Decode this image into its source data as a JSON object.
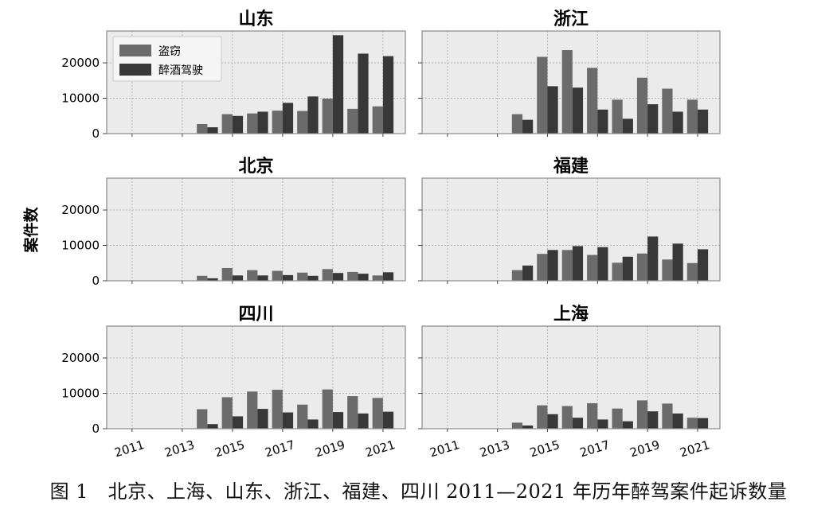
{
  "chart_data": {
    "type": "bar",
    "figure_caption": "图 1　北京、上海、山东、浙江、福建、四川 2011—2021 年历年醉驾案件起诉数量",
    "ylabel": "案件数",
    "categories": [
      "2011",
      "2012",
      "2013",
      "2014",
      "2015",
      "2016",
      "2017",
      "2018",
      "2019",
      "2020",
      "2021"
    ],
    "xtick_labels": [
      "2011",
      "2013",
      "2015",
      "2017",
      "2019",
      "2021"
    ],
    "ytick_labels": [
      "0",
      "10000",
      "20000"
    ],
    "yticks": [
      0,
      10000,
      20000
    ],
    "ylim": [
      0,
      29000
    ],
    "grid": true,
    "legend": {
      "entries": [
        "盗窃",
        "醉酒驾驶"
      ],
      "location": "top-left of first panel"
    },
    "colors": {
      "theft": "#6b6b6b",
      "drunk": "#383838",
      "panel_bg": "#ebebeb",
      "grid": "#b4b4b4"
    },
    "panels": [
      {
        "title": "山东",
        "series": [
          {
            "name": "盗窃",
            "values": [
              0,
              0,
              0,
              2700,
              5500,
              5700,
              6500,
              6400,
              9900,
              7000,
              7700
            ]
          },
          {
            "name": "醉酒驾驶",
            "values": [
              0,
              0,
              0,
              1800,
              5000,
              6200,
              8700,
              10500,
              27800,
              22600,
              21900
            ]
          }
        ]
      },
      {
        "title": "浙江",
        "series": [
          {
            "name": "盗窃",
            "values": [
              0,
              0,
              0,
              5500,
              21700,
              23600,
              18600,
              9600,
              15800,
              12700,
              9600
            ]
          },
          {
            "name": "醉酒驾驶",
            "values": [
              0,
              0,
              0,
              3900,
              13400,
              13000,
              6800,
              4200,
              8300,
              6200,
              6800
            ]
          }
        ]
      },
      {
        "title": "北京",
        "series": [
          {
            "name": "盗窃",
            "values": [
              0,
              0,
              0,
              1400,
              3600,
              3000,
              2800,
              2300,
              3300,
              2500,
              1500
            ]
          },
          {
            "name": "醉酒驾驶",
            "values": [
              0,
              0,
              0,
              700,
              1500,
              1500,
              1600,
              1400,
              2200,
              2000,
              2400
            ]
          }
        ]
      },
      {
        "title": "福建",
        "series": [
          {
            "name": "盗窃",
            "values": [
              0,
              0,
              0,
              3000,
              7600,
              8700,
              7300,
              5100,
              7700,
              6000,
              5000
            ]
          },
          {
            "name": "醉酒驾驶",
            "values": [
              0,
              0,
              0,
              4300,
              8700,
              9800,
              9500,
              6800,
              12500,
              10500,
              8900
            ]
          }
        ]
      },
      {
        "title": "四川",
        "series": [
          {
            "name": "盗窃",
            "values": [
              0,
              0,
              0,
              5500,
              8900,
              10500,
              11000,
              6800,
              11100,
              9200,
              8700
            ]
          },
          {
            "name": "醉酒驾驶",
            "values": [
              0,
              0,
              0,
              1300,
              3500,
              5600,
              4600,
              2600,
              4700,
              4300,
              4800
            ]
          }
        ]
      },
      {
        "title": "上海",
        "series": [
          {
            "name": "盗窃",
            "values": [
              0,
              0,
              0,
              1700,
              6600,
              6400,
              7200,
              5700,
              8000,
              7100,
              3100
            ]
          },
          {
            "name": "醉酒驾驶",
            "values": [
              0,
              0,
              0,
              900,
              4100,
              3100,
              2600,
              2100,
              4900,
              4300,
              3000
            ]
          }
        ]
      }
    ]
  }
}
